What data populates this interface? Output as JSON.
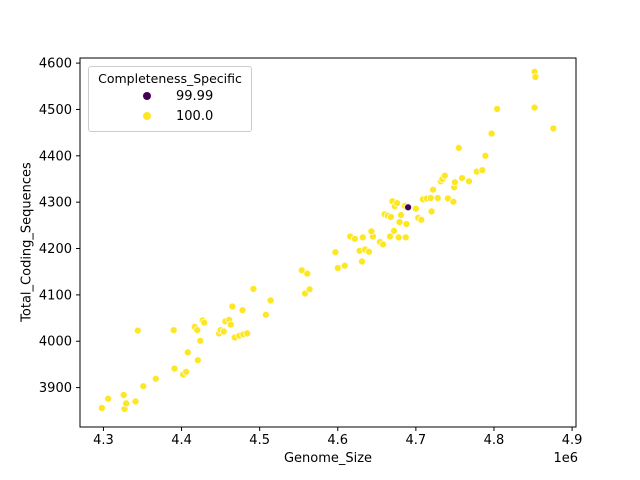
{
  "legend": {
    "title": "Completeness_Specific",
    "items": [
      {
        "label": "99.99",
        "color": "#440154"
      },
      {
        "label": "100.0",
        "color": "#FDE725"
      }
    ]
  },
  "chart_data": {
    "type": "scatter",
    "title": "",
    "xlabel": "Genome_Size",
    "ylabel": "Total_Coding_Sequences",
    "x_offset_label": "1e6",
    "legend_title": "Completeness_Specific",
    "legend_position": "upper left",
    "grid": false,
    "xlim": [
      4270000,
      4905000
    ],
    "ylim": [
      3815,
      4611
    ],
    "xticks": {
      "values": [
        4300000,
        4400000,
        4500000,
        4600000,
        4700000,
        4800000,
        4900000
      ],
      "labels": [
        "4.3",
        "4.4",
        "4.5",
        "4.6",
        "4.7",
        "4.8",
        "4.9"
      ]
    },
    "yticks": {
      "values": [
        3900,
        4000,
        4100,
        4200,
        4300,
        4400,
        4500,
        4600
      ],
      "labels": [
        "3900",
        "4000",
        "4100",
        "4200",
        "4300",
        "4400",
        "4500",
        "4600"
      ]
    },
    "series": [
      {
        "name": "99.99",
        "color": "#440154",
        "points": [
          [
            4690000,
            4289
          ]
        ]
      },
      {
        "name": "100.0",
        "color": "#FDE725",
        "points": [
          [
            4298000,
            3856
          ],
          [
            4306000,
            3876
          ],
          [
            4326000,
            3884
          ],
          [
            4327000,
            3854
          ],
          [
            4329000,
            3866
          ],
          [
            4341000,
            3870
          ],
          [
            4344000,
            4023
          ],
          [
            4351000,
            3903
          ],
          [
            4367000,
            3919
          ],
          [
            4390000,
            4024
          ],
          [
            4391000,
            3941
          ],
          [
            4402000,
            3928
          ],
          [
            4406000,
            3934
          ],
          [
            4408000,
            3976
          ],
          [
            4417000,
            4031
          ],
          [
            4420000,
            4024
          ],
          [
            4421000,
            3959
          ],
          [
            4424000,
            4001
          ],
          [
            4427000,
            4045
          ],
          [
            4429000,
            4040
          ],
          [
            4448000,
            4017
          ],
          [
            4450000,
            4024
          ],
          [
            4454000,
            4021
          ],
          [
            4456000,
            4043
          ],
          [
            4461000,
            4046
          ],
          [
            4463000,
            4036
          ],
          [
            4465000,
            4075
          ],
          [
            4468000,
            4008
          ],
          [
            4474000,
            4012
          ],
          [
            4478000,
            4067
          ],
          [
            4479000,
            4015
          ],
          [
            4484000,
            4017
          ],
          [
            4492000,
            4113
          ],
          [
            4508000,
            4057
          ],
          [
            4514000,
            4088
          ],
          [
            4554000,
            4153
          ],
          [
            4558000,
            4103
          ],
          [
            4561000,
            4146
          ],
          [
            4564000,
            4112
          ],
          [
            4597000,
            4192
          ],
          [
            4600000,
            4158
          ],
          [
            4609000,
            4163
          ],
          [
            4616000,
            4226
          ],
          [
            4622000,
            4221
          ],
          [
            4628000,
            4195
          ],
          [
            4631000,
            4172
          ],
          [
            4632000,
            4224
          ],
          [
            4635000,
            4198
          ],
          [
            4640000,
            4193
          ],
          [
            4645000,
            4226
          ],
          [
            4654000,
            4214
          ],
          [
            4658000,
            4209
          ],
          [
            4643000,
            4237
          ],
          [
            4660000,
            4274
          ],
          [
            4664000,
            4271
          ],
          [
            4667000,
            4226
          ],
          [
            4668000,
            4268
          ],
          [
            4670000,
            4302
          ],
          [
            4672000,
            4238
          ],
          [
            4673000,
            4291
          ],
          [
            4676000,
            4298
          ],
          [
            4678000,
            4224
          ],
          [
            4679000,
            4257
          ],
          [
            4681000,
            4272
          ],
          [
            4686000,
            4292
          ],
          [
            4687000,
            4224
          ],
          [
            4688000,
            4253
          ],
          [
            4700000,
            4286
          ],
          [
            4703000,
            4266
          ],
          [
            4707000,
            4262
          ],
          [
            4720000,
            4280
          ],
          [
            4709000,
            4306
          ],
          [
            4714000,
            4308
          ],
          [
            4719000,
            4309
          ],
          [
            4722000,
            4327
          ],
          [
            4728000,
            4309
          ],
          [
            4732000,
            4345
          ],
          [
            4734000,
            4350
          ],
          [
            4737000,
            4357
          ],
          [
            4741000,
            4308
          ],
          [
            4748000,
            4301
          ],
          [
            4749000,
            4332
          ],
          [
            4750000,
            4343
          ],
          [
            4759000,
            4352
          ],
          [
            4768000,
            4345
          ],
          [
            4778000,
            4366
          ],
          [
            4785000,
            4369
          ],
          [
            4755000,
            4417
          ],
          [
            4789000,
            4400
          ],
          [
            4797000,
            4448
          ],
          [
            4804000,
            4501
          ],
          [
            4852000,
            4504
          ],
          [
            4852000,
            4581
          ],
          [
            4853000,
            4570
          ],
          [
            4876000,
            4459
          ]
        ]
      }
    ]
  }
}
